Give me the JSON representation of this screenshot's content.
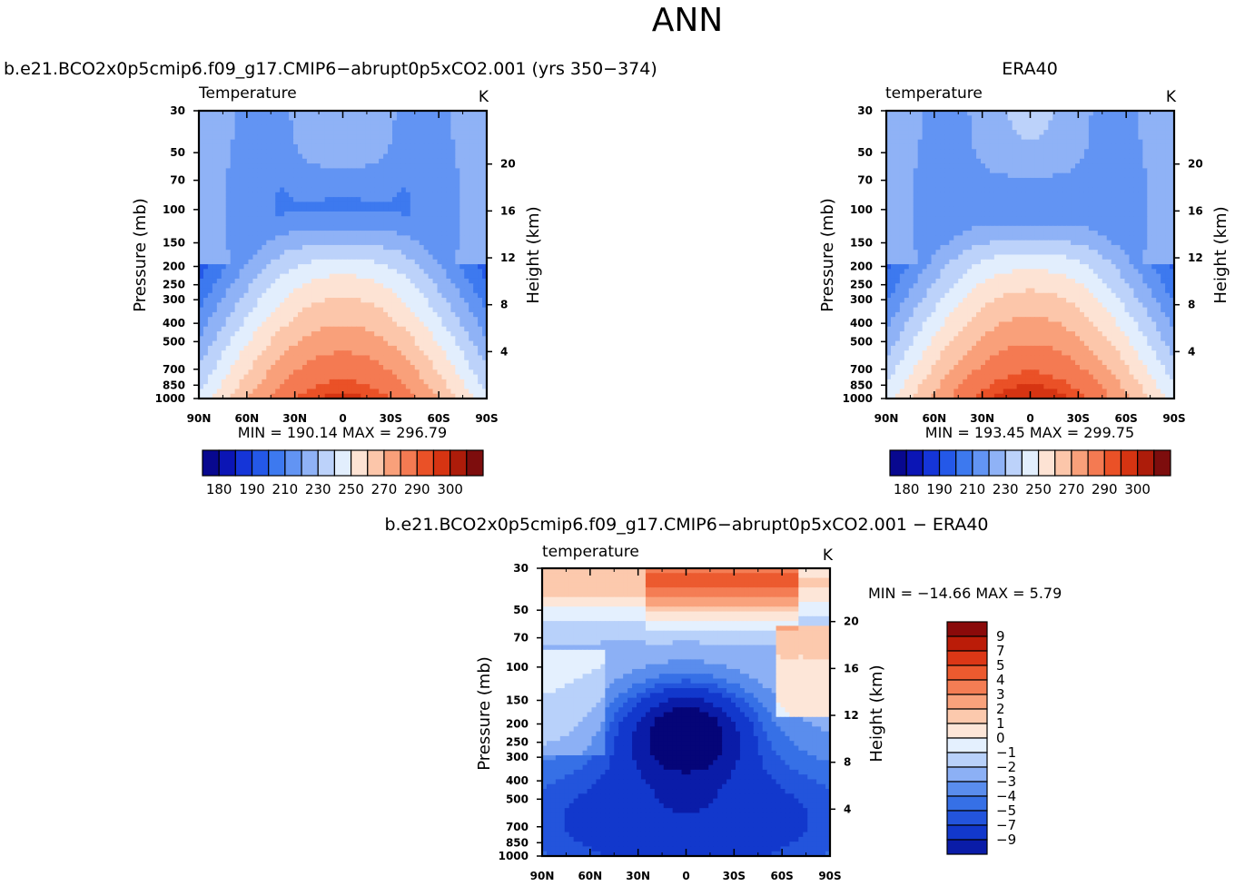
{
  "figure": {
    "title": "ANN",
    "colors": {
      "abs_palette": [
        "#08088f",
        "#0b15b5",
        "#1535d8",
        "#2458e8",
        "#3d79ef",
        "#6294f3",
        "#8fb2f6",
        "#bcd2fa",
        "#e2eefd",
        "#fde3d4",
        "#fcc6aa",
        "#f9a07a",
        "#f47a52",
        "#ea5127",
        "#d63412",
        "#ad1c0a",
        "#7d0d0d"
      ],
      "diff_palette": [
        "#050578",
        "#0a1ca8",
        "#1238cc",
        "#2354dc",
        "#3670e6",
        "#5a8ded",
        "#8cb0f5",
        "#b8d1fa",
        "#e4f0fe",
        "#fde6d8",
        "#fcc9ad",
        "#f9a27c",
        "#f47d54",
        "#ec5a2f",
        "#dc3716",
        "#bb1c08",
        "#8a0a0a"
      ]
    }
  },
  "chart_data": [
    {
      "type": "heatmap",
      "header_left": "b.e21.BCO2x0p5cmip6.f09_g17.CMIP6−abrupt0p5xCO2.001  (yrs  350−374)",
      "title": "Temperature",
      "units": "K",
      "ylabel": "Pressure  (mb)",
      "ylabel_right": "Height  (km)",
      "x_ticks": [
        "90N",
        "60N",
        "30N",
        "0",
        "30S",
        "60S",
        "90S"
      ],
      "y_ticks": [
        30,
        50,
        70,
        100,
        150,
        200,
        250,
        300,
        400,
        500,
        700,
        850,
        1000
      ],
      "y_right_ticks": [
        4,
        8,
        12,
        16,
        20
      ],
      "ylim": [
        1000,
        30
      ],
      "y_scale": "log",
      "stats": "MIN  =  190.14    MAX  =  296.79",
      "colorbar": {
        "orientation": "horizontal",
        "labels": [
          "180",
          "190",
          "210",
          "230",
          "250",
          "270",
          "290",
          "300"
        ]
      },
      "field_summary": {
        "min": 190.14,
        "max": 296.79,
        "cold_core": {
          "center_lat": 0,
          "center_pressure_mb": 100
        },
        "warm_core": {
          "center_lat": 0,
          "center_pressure_mb": 1000
        }
      }
    },
    {
      "type": "heatmap",
      "header_center": "ERA40",
      "title": "temperature",
      "units": "K",
      "ylabel": "Pressure  (mb)",
      "ylabel_right": "Height  (km)",
      "x_ticks": [
        "90N",
        "60N",
        "30N",
        "0",
        "30S",
        "60S",
        "90S"
      ],
      "y_ticks": [
        30,
        50,
        70,
        100,
        150,
        200,
        250,
        300,
        400,
        500,
        700,
        850,
        1000
      ],
      "y_right_ticks": [
        4,
        8,
        12,
        16,
        20
      ],
      "ylim": [
        1000,
        30
      ],
      "y_scale": "log",
      "stats": "MIN  =  193.45    MAX  =  299.75",
      "colorbar": {
        "orientation": "horizontal",
        "labels": [
          "180",
          "190",
          "210",
          "230",
          "250",
          "270",
          "290",
          "300"
        ]
      },
      "field_summary": {
        "min": 193.45,
        "max": 299.75,
        "cold_core": {
          "center_lat": 0,
          "center_pressure_mb": 100
        },
        "warm_core": {
          "center_lat": 0,
          "center_pressure_mb": 1000
        }
      }
    },
    {
      "type": "heatmap",
      "header_center": "b.e21.BCO2x0p5cmip6.f09_g17.CMIP6−abrupt0p5xCO2.001  −  ERA40",
      "title": "temperature",
      "units": "K",
      "ylabel": "Pressure  (mb)",
      "ylabel_right": "Height  (km)",
      "x_ticks": [
        "90N",
        "60N",
        "30N",
        "0",
        "30S",
        "60S",
        "90S"
      ],
      "y_ticks": [
        30,
        50,
        70,
        100,
        150,
        200,
        250,
        300,
        400,
        500,
        700,
        850,
        1000
      ],
      "y_right_ticks": [
        4,
        8,
        12,
        16,
        20
      ],
      "ylim": [
        1000,
        30
      ],
      "y_scale": "log",
      "stats": "MIN  =  −14.66    MAX  =      5.79",
      "colorbar": {
        "orientation": "vertical",
        "labels": [
          "9",
          "7",
          "5",
          "4",
          "3",
          "2",
          "1",
          "0",
          "−1",
          "−2",
          "−3",
          "−4",
          "−5",
          "−7",
          "−9"
        ]
      },
      "field_summary": {
        "min": -14.66,
        "max": 5.79,
        "warm_anomaly": {
          "pressure_range_mb": [
            30,
            70
          ],
          "lat_range": [
            "30N",
            "60S"
          ]
        },
        "cold_anomaly": {
          "center_lat": 0,
          "center_pressure_mb": 200
        }
      }
    }
  ]
}
